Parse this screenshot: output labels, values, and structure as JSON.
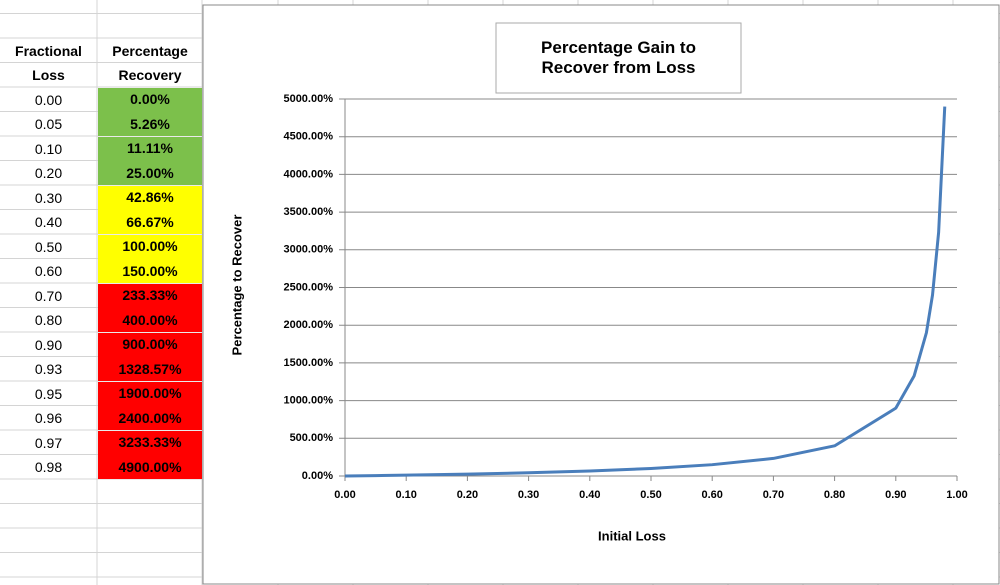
{
  "table": {
    "headers": [
      "Fractional Loss",
      "Percentage Recovery"
    ],
    "rows": [
      [
        "0.00",
        "0.00%"
      ],
      [
        "0.05",
        "5.26%"
      ],
      [
        "0.10",
        "11.11%"
      ],
      [
        "0.20",
        "25.00%"
      ],
      [
        "0.30",
        "42.86%"
      ],
      [
        "0.40",
        "66.67%"
      ],
      [
        "0.50",
        "100.00%"
      ],
      [
        "0.60",
        "150.00%"
      ],
      [
        "0.70",
        "233.33%"
      ],
      [
        "0.80",
        "400.00%"
      ],
      [
        "0.90",
        "900.00%"
      ],
      [
        "0.93",
        "1328.57%"
      ],
      [
        "0.95",
        "1900.00%"
      ],
      [
        "0.96",
        "2400.00%"
      ],
      [
        "0.97",
        "3233.33%"
      ],
      [
        "0.98",
        "4900.00%"
      ]
    ],
    "row_fills": [
      "#7cc04b",
      "#7cc04b",
      "#7cc04b",
      "#7cc04b",
      "#ffff00",
      "#ffff00",
      "#ffff00",
      "#ffff00",
      "#ff0000",
      "#ff0000",
      "#ff0000",
      "#ff0000",
      "#ff0000",
      "#ff0000",
      "#ff0000",
      "#ff0000"
    ]
  },
  "chart_data": {
    "type": "line",
    "title": "Percentage Gain to Recover from Loss",
    "x_label": "Initial Loss",
    "y_label": "Percentage to Recover",
    "x": [
      0,
      0.05,
      0.1,
      0.2,
      0.3,
      0.4,
      0.5,
      0.6,
      0.7,
      0.8,
      0.9,
      0.93,
      0.95,
      0.96,
      0.97,
      0.98
    ],
    "series": [
      {
        "color": "#4a7ebb",
        "values": [
          0,
          5.26,
          11.11,
          25,
          42.86,
          66.67,
          100,
          150,
          233.33,
          400,
          900,
          1328.57,
          1900,
          2400,
          3233.33,
          4900
        ]
      }
    ],
    "xlim": [
      0,
      1
    ],
    "ylim": [
      0,
      5000
    ],
    "grid": true,
    "xticks": [
      {
        "value": 0,
        "label": "0.00"
      },
      {
        "value": 0.1,
        "label": "0.10"
      },
      {
        "value": 0.2,
        "label": "0.20"
      },
      {
        "value": 0.3,
        "label": "0.30"
      },
      {
        "value": 0.4,
        "label": "0.40"
      },
      {
        "value": 0.5,
        "label": "0.50"
      },
      {
        "value": 0.6,
        "label": "0.60"
      },
      {
        "value": 0.7,
        "label": "0.70"
      },
      {
        "value": 0.8,
        "label": "0.80"
      },
      {
        "value": 0.9,
        "label": "0.90"
      },
      {
        "value": 1,
        "label": "1.00"
      }
    ],
    "yticks": [
      {
        "value": 0,
        "label": "0.00%"
      },
      {
        "value": 500,
        "label": "500.00%"
      },
      {
        "value": 1000,
        "label": "1000.00%"
      },
      {
        "value": 1500,
        "label": "1500.00%"
      },
      {
        "value": 2000,
        "label": "2000.00%"
      },
      {
        "value": 2500,
        "label": "2500.00%"
      },
      {
        "value": 3000,
        "label": "3000.00%"
      },
      {
        "value": 3500,
        "label": "3500.00%"
      },
      {
        "value": 4000,
        "label": "4000.00%"
      },
      {
        "value": 4500,
        "label": "4500.00%"
      },
      {
        "value": 5000,
        "label": "5000.00%"
      }
    ]
  }
}
